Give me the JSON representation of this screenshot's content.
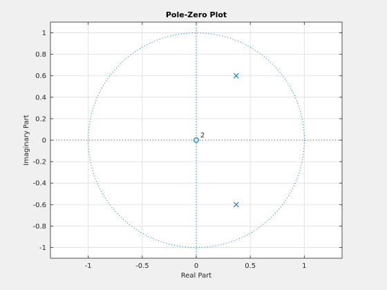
{
  "chart_data": {
    "type": "scatter",
    "title": "Pole-Zero Plot",
    "xlabel": "Real Part",
    "ylabel": "Imaginary Part",
    "xlim": [
      -1.35,
      1.35
    ],
    "ylim": [
      -1.1,
      1.1
    ],
    "xticks": [
      -1,
      -0.5,
      0,
      0.5,
      1
    ],
    "xtick_labels": [
      "-1",
      "-0.5",
      "0",
      "0.5",
      "1"
    ],
    "yticks": [
      -1,
      -0.8,
      -0.6,
      -0.4,
      -0.2,
      0,
      0.2,
      0.4,
      0.6,
      0.8,
      1
    ],
    "ytick_labels": [
      "-1",
      "-0.8",
      "-0.6",
      "-0.4",
      "-0.2",
      "0",
      "0.2",
      "0.4",
      "0.6",
      "0.8",
      "1"
    ],
    "grid": true,
    "unit_circle": true,
    "zeros": [
      {
        "re": 0,
        "im": 0,
        "multiplicity": 2,
        "label": "2"
      }
    ],
    "poles": [
      {
        "re": 0.37,
        "im": 0.6
      },
      {
        "re": 0.37,
        "im": -0.6
      }
    ],
    "colors": {
      "marker": "#0072bd",
      "unit_circle": "#0072bd",
      "axes_lines": "#0072bd",
      "grid": "#dcdcdc",
      "background": "#f0f0f0",
      "plot_area": "#ffffff"
    }
  }
}
